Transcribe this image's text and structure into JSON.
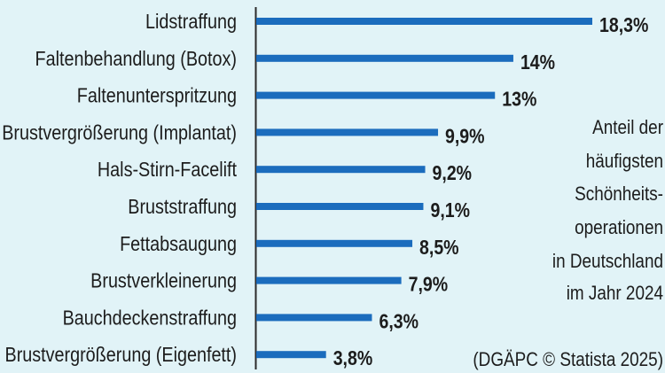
{
  "chart_data": {
    "type": "bar",
    "orientation": "horizontal",
    "title": "Anteil der häufigsten Schönheitsoperationen in Deutschland im Jahr 2024",
    "title_lines": [
      "Anteil der",
      "häufigsten",
      "Schönheits-",
      "operationen",
      "in Deutschland",
      "im Jahr 2024"
    ],
    "source": "(DGÄPC © Statista 2025)",
    "categories": [
      "Lidstraffung",
      "Faltenbehandlung (Botox)",
      "Faltenunterspritzung",
      "Brustvergrößerung (Implantat)",
      "Hals-Stirn-Facelift",
      "Bruststraffung",
      "Fettabsaugung",
      "Brustverkleinerung",
      "Bauchdeckenstraffung",
      "Brustvergrößerung (Eigenfett)"
    ],
    "values": [
      18.3,
      14,
      13,
      9.9,
      9.2,
      9.1,
      8.5,
      7.9,
      6.3,
      3.8
    ],
    "value_labels": [
      "18,3%",
      "14%",
      "13%",
      "9,9%",
      "9,2%",
      "9,1%",
      "8,5%",
      "7,9%",
      "6,3%",
      "3,8%"
    ],
    "unit": "%",
    "xlabel": "",
    "ylabel": "",
    "xlim": [
      0,
      18.3
    ],
    "grid": false,
    "bar_color": "#1b6cbd",
    "legend": "none"
  }
}
